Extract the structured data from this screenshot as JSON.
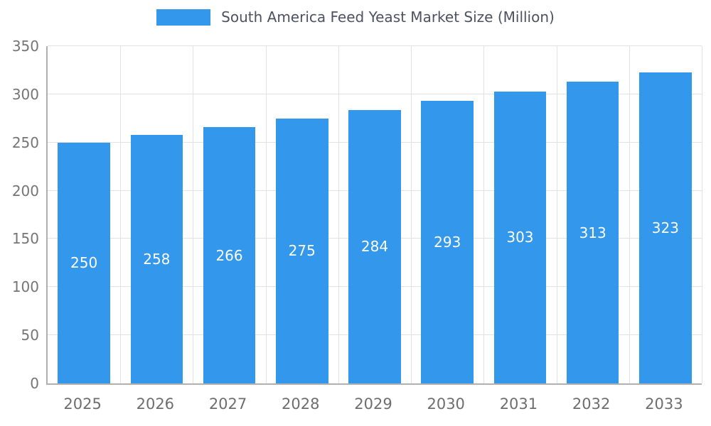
{
  "chart": {
    "legend_label": "South America Feed Yeast Market Size (Million)",
    "colors": {
      "bar": "#3398EB",
      "grid": "#e2e2e2",
      "axis": "#b0b0b0",
      "tick_text": "#757575",
      "title_text": "#4d5263",
      "bar_label_text": "#ffffff"
    }
  },
  "chart_data": {
    "type": "bar",
    "title": "South America Feed Yeast Market Size (Million)",
    "categories": [
      "2025",
      "2026",
      "2027",
      "2028",
      "2029",
      "2030",
      "2031",
      "2032",
      "2033"
    ],
    "values": [
      250,
      258,
      266,
      275,
      284,
      293,
      303,
      313,
      323
    ],
    "xlabel": "",
    "ylabel": "",
    "ylim": [
      0,
      350
    ],
    "yticks": [
      0,
      50,
      100,
      150,
      200,
      250,
      300,
      350
    ],
    "grid": true,
    "legend_position": "top",
    "bar_value_labels": "centered inside bars"
  }
}
